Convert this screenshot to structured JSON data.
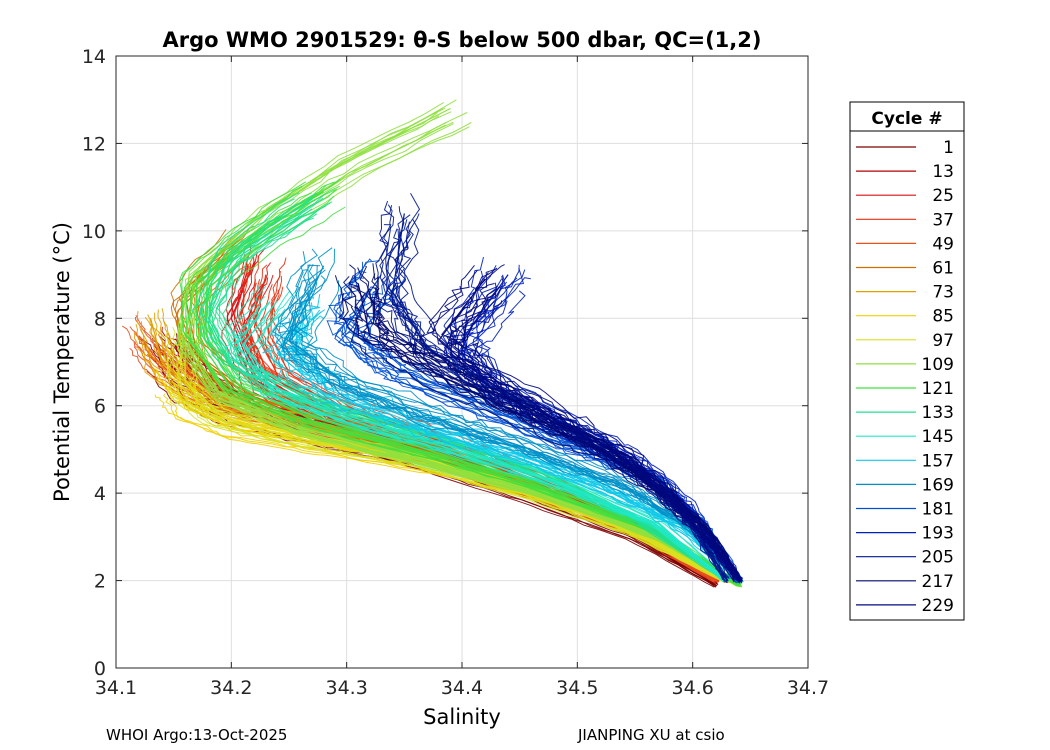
{
  "chart_data": {
    "type": "line",
    "title": "Argo WMO 2901529: θ-S below 500 dbar,  QC=(1,2)",
    "xlabel": "Salinity",
    "ylabel": "Potential Temperature (°C)",
    "xlim": [
      34.1,
      34.7
    ],
    "ylim": [
      0,
      14
    ],
    "xticks": [
      "34.1",
      "34.2",
      "34.3",
      "34.4",
      "34.5",
      "34.6",
      "34.7"
    ],
    "yticks": [
      "0",
      "2",
      "4",
      "6",
      "8",
      "10",
      "12",
      "14"
    ],
    "grid": true,
    "legend": {
      "title": "Cycle #",
      "placement": "right",
      "entries": [
        "1",
        "13",
        "25",
        "37",
        "49",
        "61",
        "73",
        "85",
        "97",
        "109",
        "121",
        "133",
        "145",
        "157",
        "169",
        "181",
        "193",
        "205",
        "217",
        "229"
      ],
      "colors": [
        "#800000",
        "#b00000",
        "#d81010",
        "#e83010",
        "#e85020",
        "#d07000",
        "#e0a000",
        "#f0d000",
        "#d8e020",
        "#90e040",
        "#40e040",
        "#20e090",
        "#20e8c8",
        "#10c8e8",
        "#0090c8",
        "#0050d0",
        "#0020c0",
        "#001890",
        "#000870",
        "#000880"
      ]
    },
    "series": [
      {
        "name": "1",
        "color": "#800000",
        "x": [
          34.14,
          34.16,
          34.2,
          34.27,
          34.35,
          34.45,
          34.55,
          34.62
        ],
        "y": [
          7.2,
          6.5,
          5.9,
          5.4,
          4.9,
          4.0,
          3.0,
          1.9
        ]
      },
      {
        "name": "13",
        "color": "#b00000",
        "x": [
          34.15,
          34.17,
          34.21,
          34.28,
          34.36,
          34.46,
          34.56,
          34.62
        ],
        "y": [
          7.4,
          6.7,
          6.0,
          5.5,
          5.0,
          4.1,
          3.1,
          2.0
        ]
      },
      {
        "name": "25",
        "color": "#d81010",
        "x": [
          34.22,
          34.2,
          34.22,
          34.28,
          34.37,
          34.46,
          34.56,
          34.62
        ],
        "y": [
          9.3,
          8.0,
          6.6,
          5.7,
          5.0,
          4.2,
          3.1,
          2.0
        ]
      },
      {
        "name": "37",
        "color": "#e83010",
        "x": [
          34.23,
          34.22,
          34.24,
          34.3,
          34.38,
          34.47,
          34.56,
          34.62
        ],
        "y": [
          9.0,
          7.8,
          6.7,
          5.9,
          5.2,
          4.3,
          3.2,
          2.0
        ]
      },
      {
        "name": "49",
        "color": "#e85020",
        "x": [
          34.12,
          34.14,
          34.18,
          34.26,
          34.35,
          34.45,
          34.55,
          34.62
        ],
        "y": [
          7.6,
          6.9,
          6.2,
          5.6,
          5.0,
          4.1,
          3.1,
          2.0
        ]
      },
      {
        "name": "61",
        "color": "#d07000",
        "x": [
          34.21,
          34.16,
          34.17,
          34.22,
          34.3,
          34.4,
          34.5,
          34.58,
          34.63
        ],
        "y": [
          9.8,
          8.5,
          7.2,
          6.2,
          5.5,
          4.7,
          3.8,
          2.8,
          2.0
        ]
      },
      {
        "name": "73",
        "color": "#e0a000",
        "x": [
          34.13,
          34.14,
          34.18,
          34.25,
          34.34,
          34.44,
          34.54,
          34.63
        ],
        "y": [
          8.0,
          7.0,
          6.2,
          5.7,
          5.1,
          4.3,
          3.3,
          2.0
        ]
      },
      {
        "name": "85",
        "color": "#f0d000",
        "x": [
          34.15,
          34.16,
          34.2,
          34.28,
          34.38,
          34.48,
          34.57,
          34.63
        ],
        "y": [
          6.5,
          6.0,
          5.5,
          5.1,
          4.6,
          3.9,
          3.0,
          2.0
        ]
      },
      {
        "name": "97",
        "color": "#d8e020",
        "x": [
          34.16,
          34.16,
          34.19,
          34.26,
          34.36,
          34.46,
          34.55,
          34.63
        ],
        "y": [
          7.5,
          6.5,
          5.8,
          5.3,
          4.8,
          4.0,
          3.1,
          2.0
        ]
      },
      {
        "name": "109",
        "color": "#90e040",
        "x": [
          34.39,
          34.3,
          34.23,
          34.17,
          34.16,
          34.19,
          34.26,
          34.36,
          34.47,
          34.57,
          34.64
        ],
        "y": [
          12.8,
          11.6,
          10.4,
          9.0,
          7.5,
          6.3,
          5.5,
          4.8,
          4.0,
          3.0,
          1.9
        ]
      },
      {
        "name": "121",
        "color": "#40e040",
        "x": [
          34.28,
          34.22,
          34.17,
          34.17,
          34.2,
          34.27,
          34.37,
          34.47,
          34.57,
          34.64
        ],
        "y": [
          10.9,
          9.9,
          8.8,
          7.6,
          6.4,
          5.6,
          4.9,
          4.1,
          3.1,
          1.9
        ]
      },
      {
        "name": "133",
        "color": "#20e090",
        "x": [
          34.27,
          34.2,
          34.18,
          34.2,
          34.27,
          34.36,
          34.46,
          34.55,
          34.63
        ],
        "y": [
          10.5,
          9.3,
          8.0,
          6.9,
          6.0,
          5.3,
          4.5,
          3.4,
          2.0
        ]
      },
      {
        "name": "145",
        "color": "#20e8c8",
        "x": [
          34.24,
          34.21,
          34.24,
          34.31,
          34.4,
          34.49,
          34.57,
          34.63
        ],
        "y": [
          8.4,
          7.4,
          6.4,
          5.7,
          5.0,
          4.2,
          3.3,
          2.0
        ]
      },
      {
        "name": "157",
        "color": "#10c8e8",
        "x": [
          34.26,
          34.24,
          34.28,
          34.36,
          34.45,
          34.53,
          34.59,
          34.64
        ],
        "y": [
          8.2,
          7.2,
          6.3,
          5.5,
          4.8,
          4.0,
          3.2,
          2.0
        ]
      },
      {
        "name": "169",
        "color": "#0090c8",
        "x": [
          34.28,
          34.25,
          34.3,
          34.38,
          34.46,
          34.54,
          34.6,
          34.64
        ],
        "y": [
          9.2,
          7.5,
          6.5,
          5.7,
          5.0,
          4.2,
          3.2,
          2.0
        ]
      },
      {
        "name": "181",
        "color": "#0050d0",
        "x": [
          34.33,
          34.3,
          34.34,
          34.42,
          34.5,
          34.57,
          34.61,
          34.64
        ],
        "y": [
          9.0,
          7.8,
          6.9,
          6.0,
          5.1,
          4.3,
          3.3,
          2.0
        ]
      },
      {
        "name": "193",
        "color": "#0020c0",
        "x": [
          34.44,
          34.4,
          34.42,
          34.48,
          34.54,
          34.58,
          34.61,
          34.64
        ],
        "y": [
          9.0,
          7.5,
          6.5,
          5.7,
          4.9,
          4.1,
          3.2,
          2.0
        ]
      },
      {
        "name": "205",
        "color": "#001890",
        "x": [
          34.35,
          34.34,
          34.37,
          34.44,
          34.51,
          34.56,
          34.6,
          34.63
        ],
        "y": [
          10.4,
          8.6,
          7.3,
          6.2,
          5.2,
          4.3,
          3.3,
          2.0
        ]
      },
      {
        "name": "217",
        "color": "#000870",
        "x": [
          34.31,
          34.32,
          34.38,
          34.45,
          34.52,
          34.57,
          34.61,
          34.64
        ],
        "y": [
          8.8,
          7.6,
          6.7,
          5.8,
          5.0,
          4.1,
          3.2,
          2.0
        ]
      },
      {
        "name": "229",
        "color": "#000880",
        "x": [
          34.42,
          34.38,
          34.42,
          34.48,
          34.54,
          34.58,
          34.61,
          34.64
        ],
        "y": [
          8.9,
          7.5,
          6.6,
          5.7,
          4.8,
          3.9,
          3.0,
          2.0
        ]
      }
    ]
  },
  "footer": {
    "left": "WHOI Argo:13-Oct-2025",
    "right": "JIANPING XU at csio"
  }
}
